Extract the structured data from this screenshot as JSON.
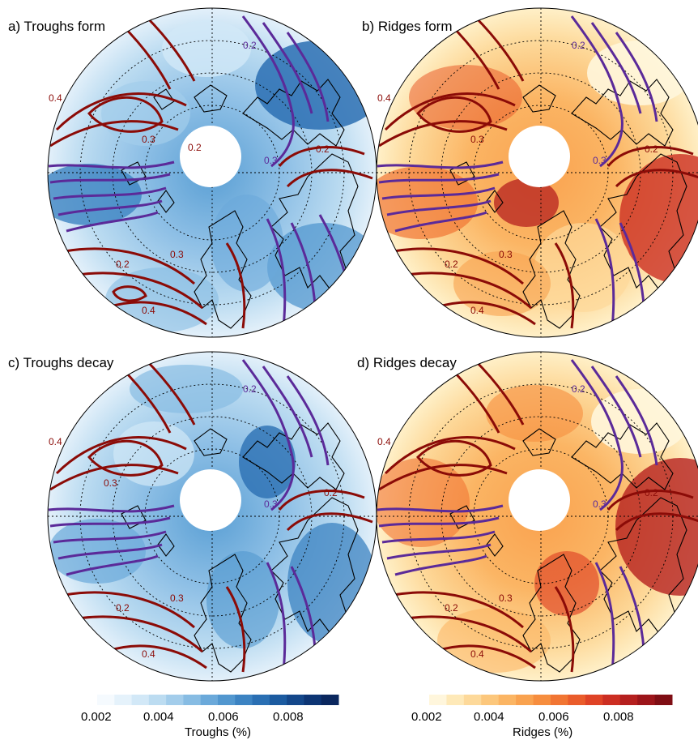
{
  "panels": [
    {
      "title": "a) Troughs form",
      "scheme": "blues"
    },
    {
      "title": "b) Ridges form",
      "scheme": "reds"
    },
    {
      "title": "c) Troughs decay",
      "scheme": "blues"
    },
    {
      "title": "d) Ridges decay",
      "scheme": "reds"
    }
  ],
  "colorbars": [
    {
      "label": "Troughs (%)",
      "ticks": [
        "0.002",
        "0.004",
        "0.006",
        "0.008"
      ],
      "colors": [
        "#f5fafe",
        "#e5f2fb",
        "#d2e8f7",
        "#bcdcf1",
        "#a3cdeb",
        "#87bce3",
        "#6ba9da",
        "#5297cf",
        "#3c83c2",
        "#2a6fb3",
        "#1c5ba0",
        "#14478a",
        "#0d3574",
        "#0a275e"
      ]
    },
    {
      "label": "Ridges (%)",
      "ticks": [
        "0.002",
        "0.004",
        "0.006",
        "0.008"
      ],
      "colors": [
        "#fff6dc",
        "#fee9b8",
        "#fdd99a",
        "#fcc77c",
        "#fbb564",
        "#f9a24f",
        "#f68d3e",
        "#f17533",
        "#ea5c2b",
        "#df4326",
        "#cc2e22",
        "#b5201f",
        "#9c151a",
        "#7f0e14"
      ]
    }
  ],
  "contour_colors": {
    "positive": "#8b0b07",
    "negative": "#5b2a99"
  },
  "contour_levels": [
    "0.2",
    "0.3",
    "0.4"
  ]
}
